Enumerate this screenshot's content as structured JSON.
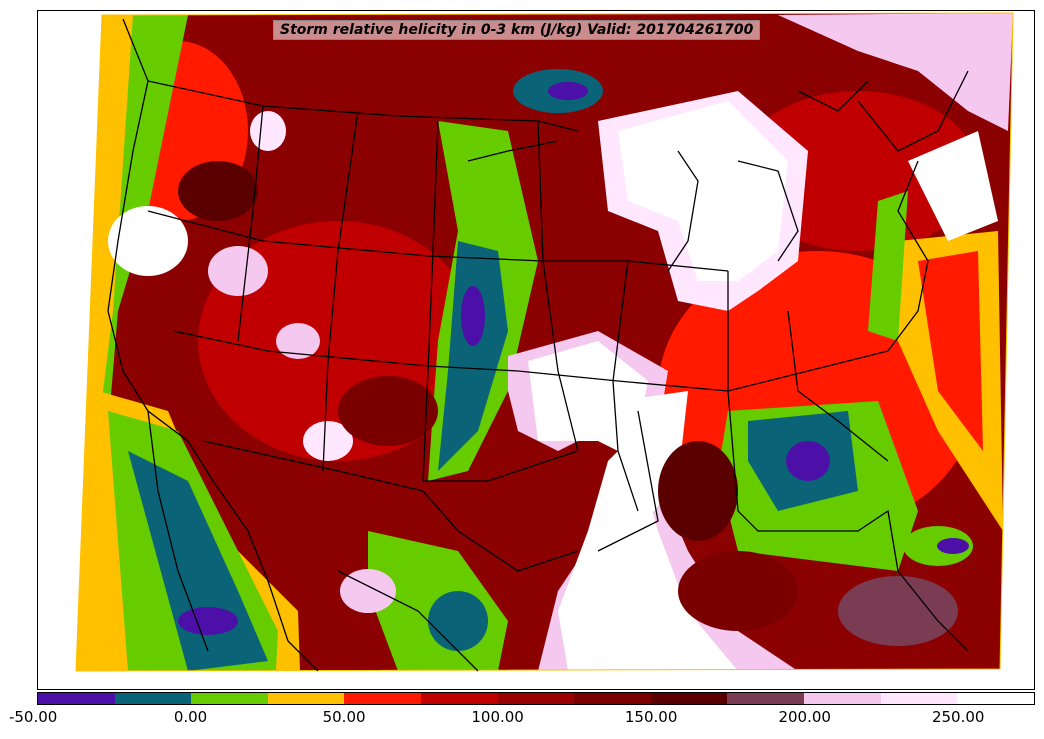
{
  "title": "Storm relative helicity in 0-3 km (J/kg) Valid: 201704261700",
  "colorbar": {
    "min": -50,
    "max": 275,
    "colors": [
      "#4c10a8",
      "#0a6376",
      "#66cc00",
      "#ffc000",
      "#ff1a00",
      "#c00000",
      "#9b0000",
      "#7a0000",
      "#5a0000",
      "#7a3c52",
      "#f5c8f0",
      "#ffe8ff",
      "#ffffff"
    ],
    "ticks": [
      "-50.00",
      "0.00",
      "50.00",
      "100.00",
      "150.00",
      "200.00",
      "250.00"
    ],
    "tick_values": [
      -50,
      0,
      50,
      100,
      150,
      200,
      250
    ]
  }
}
